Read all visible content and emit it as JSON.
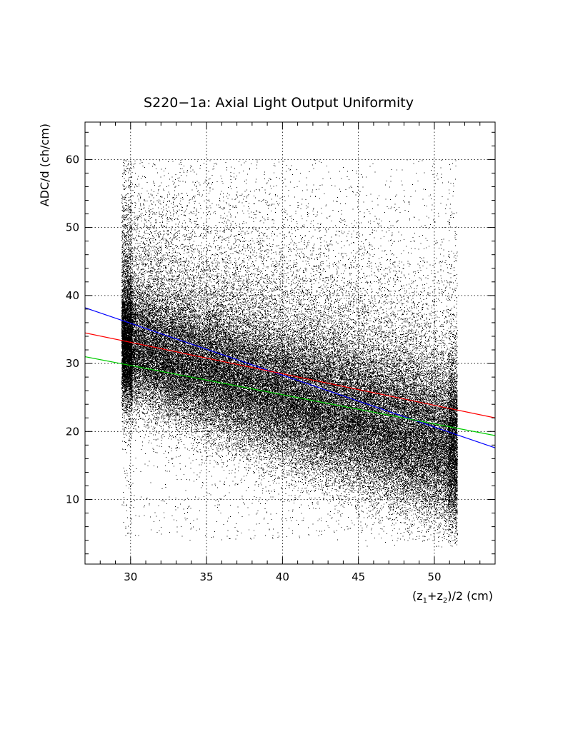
{
  "chart_data": {
    "type": "scatter",
    "title": "S220−1a: Axial Light Output Uniformity",
    "xlabel": "(z1+z2)/2 (cm)",
    "xlabel_parts": {
      "open": "(z",
      "sub1": "1",
      "plus": "+z",
      "sub2": "2",
      "close": ")/2 (cm)"
    },
    "ylabel": "ADC/d (ch/cm)",
    "xlim": [
      27,
      54
    ],
    "ylim": [
      0.5,
      65.5
    ],
    "xticks": [
      30,
      35,
      40,
      45,
      50
    ],
    "yticks": [
      10,
      20,
      30,
      40,
      50,
      60
    ],
    "grid": true,
    "scatter": {
      "x_range": [
        29.4,
        51.5
      ],
      "y_cap": 60,
      "color": "#000000",
      "approx_points": 90000,
      "core_trend": {
        "x": [
          29.5,
          51.5
        ],
        "y": [
          32.5,
          16.5
        ]
      }
    },
    "series": [
      {
        "color": "#0000ff",
        "x": [
          27,
          54
        ],
        "y": [
          38.2,
          17.6
        ]
      },
      {
        "color": "#ff0000",
        "x": [
          27,
          54
        ],
        "y": [
          34.5,
          22.0
        ]
      },
      {
        "color": "#00cc00",
        "x": [
          27,
          54
        ],
        "y": [
          31.0,
          19.4
        ]
      }
    ]
  }
}
